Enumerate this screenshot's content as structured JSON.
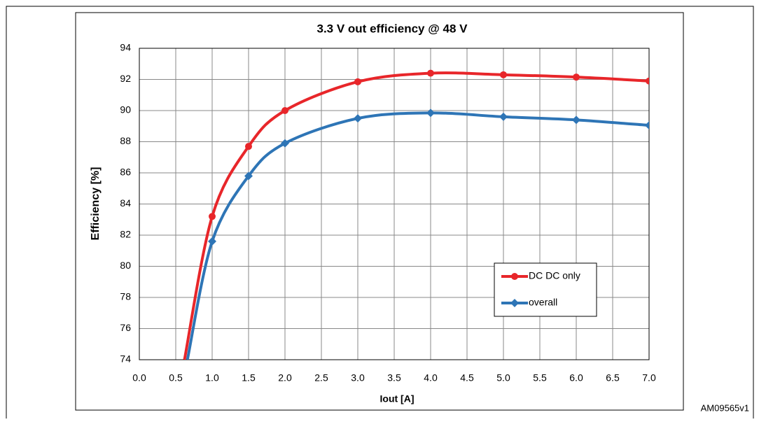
{
  "chart_data": {
    "type": "line",
    "title": "3.3 V out efficiency @ 48 V",
    "x_label": "Iout [A]",
    "y_label": "Efficiency  [%]",
    "figure_id": "AM09565v1",
    "xlim": [
      0,
      7
    ],
    "ylim": [
      74,
      94
    ],
    "xticks": [
      {
        "value": 0,
        "label": "0.0"
      },
      0.5,
      {
        "value": 1,
        "label": "1.0"
      },
      1.5,
      {
        "value": 2,
        "label": "2.0"
      },
      2.5,
      {
        "value": 3,
        "label": "3.0"
      },
      3.5,
      {
        "value": 4,
        "label": "4.0"
      },
      4.5,
      {
        "value": 5,
        "label": "5.0"
      },
      5.5,
      {
        "value": 6,
        "label": "6.0"
      },
      6.5,
      {
        "value": 7,
        "label": "7.0"
      }
    ],
    "yticks": [
      74,
      76,
      78,
      80,
      82,
      84,
      86,
      88,
      90,
      92,
      94
    ],
    "grid": true,
    "legend": "lower right",
    "series": [
      {
        "name": "DC DC only",
        "color": "#e8262a",
        "marker": "circle",
        "x": [
          0.62,
          1,
          1.5,
          2,
          3,
          4,
          5,
          6,
          7
        ],
        "values": [
          74,
          83.2,
          87.7,
          90.0,
          91.85,
          92.4,
          92.3,
          92.15,
          91.9
        ]
      },
      {
        "name": "overall",
        "color": "#2e75b6",
        "marker": "diamond",
        "x": [
          0.66,
          1,
          1.5,
          2,
          3,
          4,
          5,
          6,
          7
        ],
        "values": [
          74,
          81.6,
          85.8,
          87.9,
          89.5,
          89.85,
          89.6,
          89.4,
          89.05
        ]
      }
    ]
  }
}
